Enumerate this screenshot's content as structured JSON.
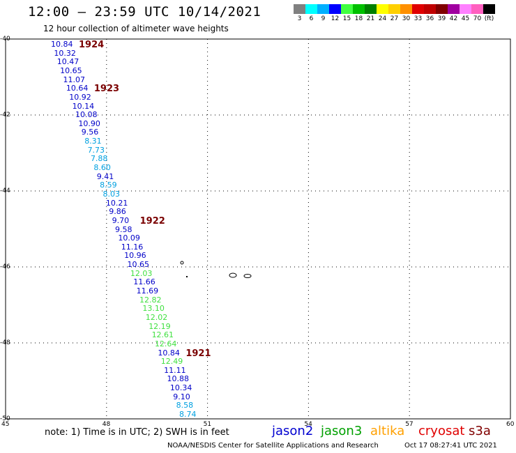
{
  "title": "12:00 — 23:59 UTC 10/14/2021",
  "subtitle": "12 hour collection of altimeter wave heights",
  "legend": {
    "colors": [
      "#808080",
      "#00ffff",
      "#00b0ff",
      "#0000ff",
      "#40ff40",
      "#00c000",
      "#008000",
      "#ffff00",
      "#ffd000",
      "#ff9000",
      "#e00000",
      "#c00000",
      "#800000",
      "#a000a0",
      "#ff80ff",
      "#ff60c0",
      "#000000"
    ],
    "labels": [
      "3",
      "6",
      "9",
      "12",
      "15",
      "18",
      "21",
      "24",
      "27",
      "30",
      "33",
      "36",
      "39",
      "42",
      "45",
      "70",
      "(ft)"
    ]
  },
  "note": "note:  1) Time is in UTC;  2) SWH is in feet",
  "satellites": [
    {
      "name": "jason2",
      "color": "#0000d0"
    },
    {
      "name": "jason3",
      "color": "#00a000"
    },
    {
      "name": "altika",
      "color": "#ffa000"
    },
    {
      "name": "cryosat",
      "color": "#e00000"
    },
    {
      "name": "s3a",
      "color": "#800000"
    }
  ],
  "credit": "NOAA/NESDIS Center for Satellite Applications and Research",
  "credit_time": "Oct 17 08:27:41 UTC 2021",
  "map": {
    "lon_range": [
      45,
      60
    ],
    "lat_range": [
      -50,
      -40
    ],
    "lon_ticks": [
      "45",
      "48",
      "51",
      "54",
      "57",
      "60"
    ],
    "lat_ticks": [
      "-40",
      "-42",
      "-44",
      "-46",
      "-48",
      "-50"
    ]
  },
  "track": [
    {
      "v": "10.84",
      "c": "#0000c8"
    },
    {
      "v": "10.32",
      "c": "#0000c8"
    },
    {
      "v": "10.47",
      "c": "#0000c8"
    },
    {
      "v": "10.65",
      "c": "#0000c8"
    },
    {
      "v": "11.07",
      "c": "#0000c8"
    },
    {
      "v": "10.64",
      "c": "#0000c8"
    },
    {
      "v": "10.92",
      "c": "#0000c8"
    },
    {
      "v": "10.14",
      "c": "#0000c8"
    },
    {
      "v": "10.08",
      "c": "#0000c8"
    },
    {
      "v": "10.90",
      "c": "#0000c8"
    },
    {
      "v": "9.56",
      "c": "#0000c8"
    },
    {
      "v": "8.31",
      "c": "#00a0e0"
    },
    {
      "v": "7.73",
      "c": "#00a0e0"
    },
    {
      "v": "7.88",
      "c": "#00a0e0"
    },
    {
      "v": "8.60",
      "c": "#00a0e0"
    },
    {
      "v": "9.41",
      "c": "#0000c8"
    },
    {
      "v": "8.59",
      "c": "#00a0e0"
    },
    {
      "v": "8.03",
      "c": "#00a0e0"
    },
    {
      "v": "10.21",
      "c": "#0000c8"
    },
    {
      "v": "9.86",
      "c": "#0000c8"
    },
    {
      "v": "9.70",
      "c": "#0000c8"
    },
    {
      "v": "9.58",
      "c": "#0000c8"
    },
    {
      "v": "10.09",
      "c": "#0000c8"
    },
    {
      "v": "11.16",
      "c": "#0000c8"
    },
    {
      "v": "10.96",
      "c": "#0000c8"
    },
    {
      "v": "10.65",
      "c": "#0000c8"
    },
    {
      "v": "12.03",
      "c": "#40e040"
    },
    {
      "v": "11.66",
      "c": "#0000c8"
    },
    {
      "v": "11.69",
      "c": "#0000c8"
    },
    {
      "v": "12.82",
      "c": "#40e040"
    },
    {
      "v": "13.10",
      "c": "#40e040"
    },
    {
      "v": "12.02",
      "c": "#40e040"
    },
    {
      "v": "12.19",
      "c": "#40e040"
    },
    {
      "v": "12.61",
      "c": "#40e040"
    },
    {
      "v": "12.64",
      "c": "#40e040"
    },
    {
      "v": "10.84",
      "c": "#0000c8"
    },
    {
      "v": "12.49",
      "c": "#40e040"
    },
    {
      "v": "11.11",
      "c": "#0000c8"
    },
    {
      "v": "10.88",
      "c": "#0000c8"
    },
    {
      "v": "10.34",
      "c": "#0000c8"
    },
    {
      "v": "9.10",
      "c": "#0000c8"
    },
    {
      "v": "8.58",
      "c": "#00a0e0"
    },
    {
      "v": "8.74",
      "c": "#00a0e0"
    }
  ],
  "pass_labels": [
    "1924",
    "1923",
    "1922",
    "1921"
  ]
}
